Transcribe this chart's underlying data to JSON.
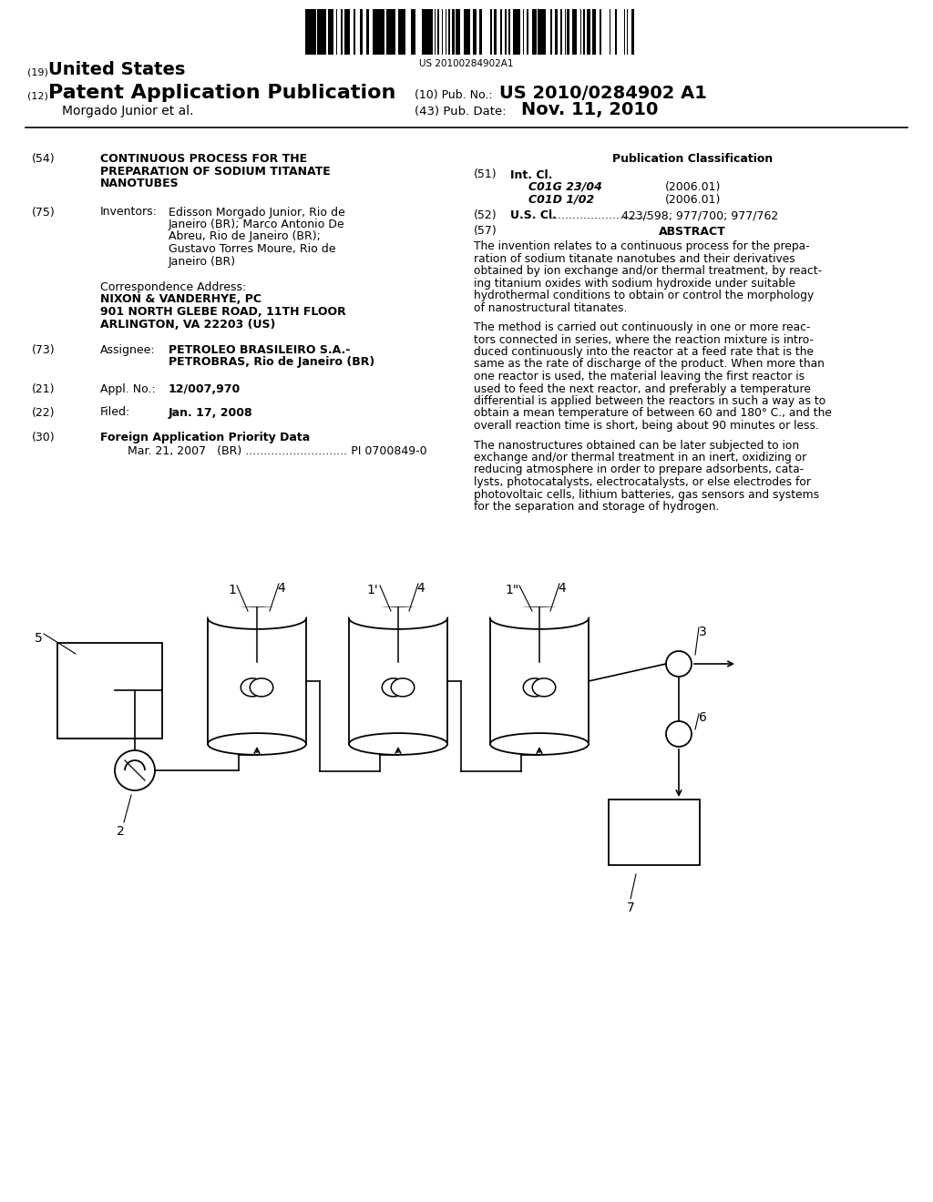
{
  "background_color": "#ffffff",
  "barcode_text": "US 20100284902A1",
  "title_19_small": "(19)",
  "title_19_big": "United States",
  "title_12_small": "(12)",
  "title_12_big": "Patent Application Publication",
  "pub_no_label": "(10) Pub. No.:",
  "pub_no_value": "US 2010/0284902 A1",
  "author": "Morgado Junior et al.",
  "pub_date_label": "(43) Pub. Date:",
  "pub_date_value": "Nov. 11, 2010",
  "field54_label": "(54)",
  "field54_title_lines": [
    "CONTINUOUS PROCESS FOR THE",
    "PREPARATION OF SODIUM TITANATE",
    "NANOTUBES"
  ],
  "field75_label": "(75)",
  "field75_name": "Inventors:",
  "field75_value_lines": [
    "Edisson Morgado Junior, Rio de",
    "Janeiro (BR); Marco Antonio De",
    "Abreu, Rio de Janeiro (BR);",
    "Gustavo Torres Moure, Rio de",
    "Janeiro (BR)"
  ],
  "corr_label": "Correspondence Address:",
  "corr_line1": "NIXON & VANDERHYE, PC",
  "corr_line2": "901 NORTH GLEBE ROAD, 11TH FLOOR",
  "corr_line3": "ARLINGTON, VA 22203 (US)",
  "field73_label": "(73)",
  "field73_name": "Assignee:",
  "field73_value_lines": [
    "PETROLEO BRASILEIRO S.A.-",
    "PETROBRAS, Rio de Janeiro (BR)"
  ],
  "field21_label": "(21)",
  "field21_name": "Appl. No.:",
  "field21_value": "12/007,970",
  "field22_label": "(22)",
  "field22_name": "Filed:",
  "field22_value": "Jan. 17, 2008",
  "field30_label": "(30)",
  "field30_name": "Foreign Application Priority Data",
  "field30_entry": "Mar. 21, 2007   (BR) ............................ PI 0700849-0",
  "pub_class_title": "Publication Classification",
  "field51_label": "(51)",
  "field51_name": "Int. Cl.",
  "field51_c1": "C01G 23/04",
  "field51_c1_year": "(2006.01)",
  "field51_c2": "C01D 1/02",
  "field51_c2_year": "(2006.01)",
  "field52_label": "(52)",
  "field52_name_plain": "U.S. Cl.",
  "field52_dots": " ...........................",
  "field52_value": " 423/598; 977/700; 977/762",
  "field57_label": "(57)",
  "field57_name": "ABSTRACT",
  "abstract_p1_lines": [
    "The invention relates to a continuous process for the prepa-",
    "ration of sodium titanate nanotubes and their derivatives",
    "obtained by ion exchange and/or thermal treatment, by react-",
    "ing titanium oxides with sodium hydroxide under suitable",
    "hydrothermal conditions to obtain or control the morphology",
    "of nanostructural titanates."
  ],
  "abstract_p2_lines": [
    "The method is carried out continuously in one or more reac-",
    "tors connected in series, where the reaction mixture is intro-",
    "duced continuously into the reactor at a feed rate that is the",
    "same as the rate of discharge of the product. When more than",
    "one reactor is used, the material leaving the first reactor is",
    "used to feed the next reactor, and preferably a temperature",
    "differential is applied between the reactors in such a way as to",
    "obtain a mean temperature of between 60 and 180° C., and the",
    "overall reaction time is short, being about 90 minutes or less."
  ],
  "abstract_p3_lines": [
    "The nanostructures obtained can be later subjected to ion",
    "exchange and/or thermal treatment in an inert, oxidizing or",
    "reducing atmosphere in order to prepare adsorbents, cata-",
    "lysts, photocatalysts, electrocatalysts, or else electrodes for",
    "photovoltaic cells, lithium batteries, gas sensors and systems",
    "for the separation and storage of hydrogen."
  ]
}
